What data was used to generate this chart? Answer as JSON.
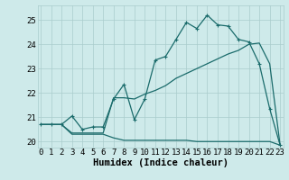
{
  "title": "",
  "xlabel": "Humidex (Indice chaleur)",
  "bg_color": "#ceeaea",
  "grid_color": "#aacccc",
  "line_color": "#1a6b6b",
  "x_ticks": [
    0,
    1,
    2,
    3,
    4,
    5,
    6,
    7,
    8,
    9,
    10,
    11,
    12,
    13,
    14,
    15,
    16,
    17,
    18,
    19,
    20,
    21,
    22,
    23
  ],
  "y_ticks": [
    20,
    21,
    22,
    23,
    24,
    25
  ],
  "xlim": [
    -0.3,
    23.3
  ],
  "ylim": [
    19.75,
    25.6
  ],
  "line1_x": [
    0,
    1,
    2,
    3,
    4,
    5,
    6,
    7,
    8,
    9,
    10,
    11,
    12,
    13,
    14,
    15,
    16,
    17,
    18,
    19,
    20,
    21,
    22,
    23
  ],
  "line1_y": [
    20.7,
    20.7,
    20.7,
    21.05,
    20.5,
    20.6,
    20.6,
    21.75,
    22.35,
    20.9,
    21.75,
    23.35,
    23.5,
    24.2,
    24.9,
    24.65,
    25.2,
    24.8,
    24.75,
    24.2,
    24.1,
    23.2,
    21.35,
    19.85
  ],
  "line2_x": [
    0,
    1,
    2,
    3,
    4,
    5,
    6,
    7,
    8,
    9,
    10,
    11,
    12,
    13,
    14,
    15,
    16,
    17,
    18,
    19,
    20,
    21,
    22,
    23
  ],
  "line2_y": [
    20.7,
    20.7,
    20.7,
    20.35,
    20.35,
    20.35,
    20.35,
    21.8,
    21.8,
    21.75,
    21.95,
    22.1,
    22.3,
    22.6,
    22.8,
    23.0,
    23.2,
    23.4,
    23.6,
    23.75,
    24.0,
    24.05,
    23.2,
    19.85
  ],
  "line3_x": [
    0,
    1,
    2,
    3,
    4,
    5,
    6,
    7,
    8,
    9,
    10,
    11,
    12,
    13,
    14,
    15,
    16,
    17,
    18,
    19,
    20,
    21,
    22,
    23
  ],
  "line3_y": [
    20.7,
    20.7,
    20.7,
    20.3,
    20.3,
    20.3,
    20.3,
    20.15,
    20.05,
    20.05,
    20.05,
    20.05,
    20.05,
    20.05,
    20.05,
    20.0,
    20.0,
    20.0,
    20.0,
    20.0,
    20.0,
    20.0,
    20.0,
    19.85
  ],
  "tick_fontsize": 6.5,
  "xlabel_fontsize": 7.5
}
